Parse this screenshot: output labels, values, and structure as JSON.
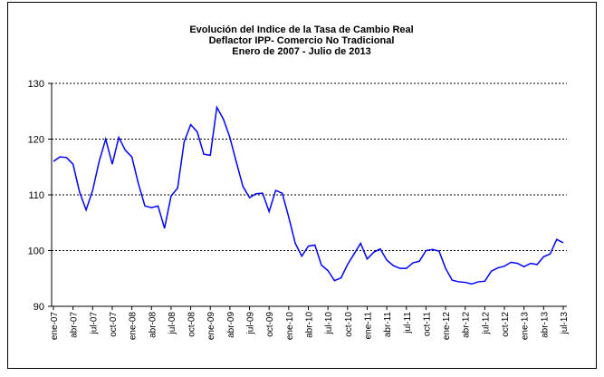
{
  "chart_data": {
    "type": "line",
    "title": [
      "Evolución del Indice de la Tasa de Cambio Real",
      "Deflactor IPP- Comercio No Tradicional",
      "Enero de 2007 -  Julio de 2013"
    ],
    "categories": [
      "ene-07",
      null,
      null,
      "abr-07",
      null,
      null,
      "jul-07",
      null,
      null,
      "oct-07",
      null,
      null,
      "ene-08",
      null,
      null,
      "abr-08",
      null,
      null,
      "jul-08",
      null,
      null,
      "oct-08",
      null,
      null,
      "ene-09",
      null,
      null,
      "abr-09",
      null,
      null,
      "jul-09",
      null,
      null,
      "oct-09",
      null,
      null,
      "ene-10",
      null,
      null,
      "abr-10",
      null,
      null,
      "jul-10",
      null,
      null,
      "oct-10",
      null,
      null,
      "ene-11",
      null,
      null,
      "abr-11",
      null,
      null,
      "jul-11",
      null,
      null,
      "oct-11",
      null,
      null,
      "ene-12",
      null,
      null,
      "abr-12",
      null,
      null,
      "jul-12",
      null,
      null,
      "oct-12",
      null,
      null,
      "ene-13",
      null,
      null,
      "abr-13",
      null,
      null,
      "jul-13"
    ],
    "series": [
      {
        "color": "#0000ff",
        "values": [
          116,
          116.8,
          116.7,
          115.5,
          110.5,
          107.3,
          110.8,
          116,
          120,
          115.5,
          120.3,
          118,
          116.8,
          112,
          108,
          107.7,
          108,
          104,
          109.8,
          111.2,
          119.5,
          122.6,
          121.3,
          117.3,
          117.1,
          125.7,
          123.6,
          120.3,
          115.8,
          111.5,
          109.5,
          110.2,
          110.3,
          107,
          110.8,
          110.3,
          106,
          101.3,
          99,
          100.8,
          101,
          97.4,
          96.4,
          94.6,
          95.1,
          97.5,
          99.4,
          101.3,
          98.5,
          99.7,
          100.3,
          98.3,
          97.3,
          96.8,
          96.8,
          97.8,
          98.1,
          100,
          100.2,
          99.9,
          96.8,
          94.7,
          94.4,
          94.3,
          94,
          94.4,
          94.5,
          96.3,
          96.9,
          97.2,
          97.9,
          97.7,
          97.1,
          97.7,
          97.5,
          98.9,
          99.4,
          102,
          101.4
        ]
      }
    ],
    "ylim": [
      90,
      130
    ],
    "yticks": [
      90,
      100,
      110,
      120,
      130
    ],
    "grid": true
  }
}
